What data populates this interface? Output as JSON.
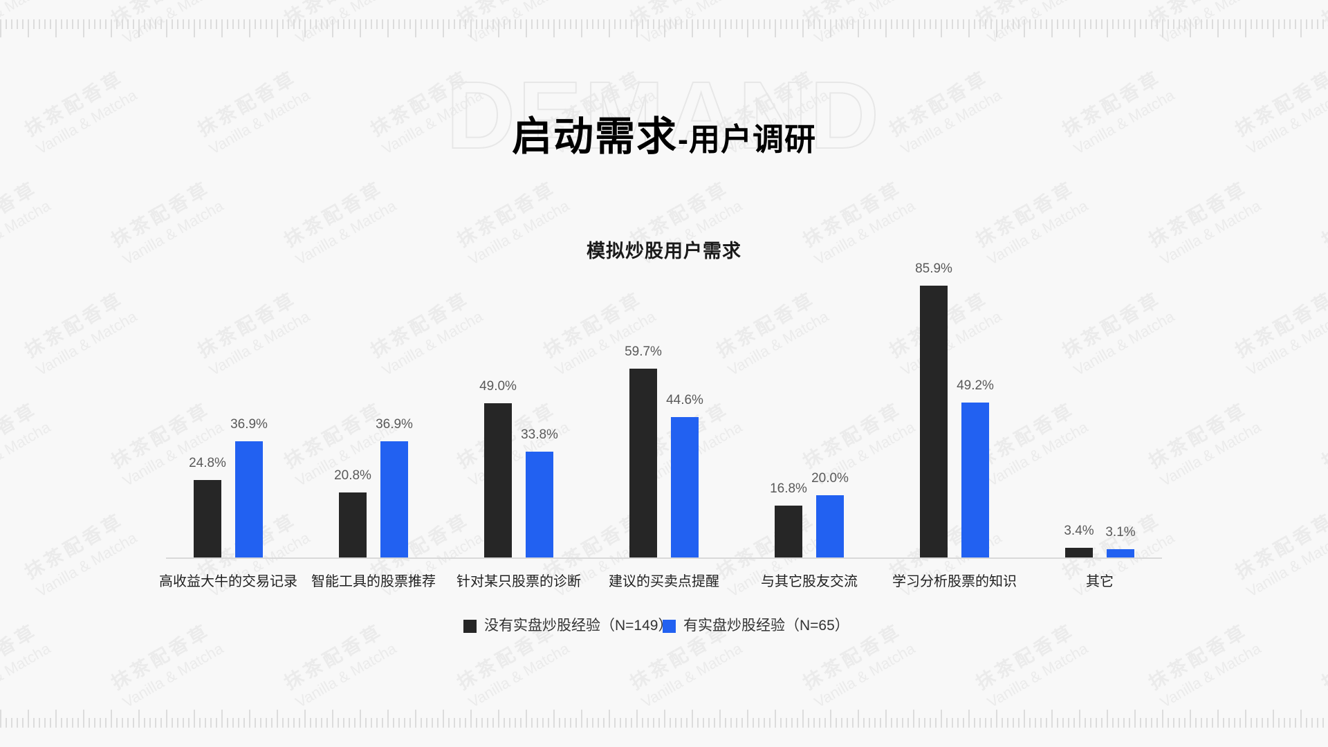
{
  "slide": {
    "background_word": "DEMAND",
    "title_main": "启动需求",
    "title_sub": "-用户调研",
    "background_color": "#f8f8f8"
  },
  "watermark": {
    "line_cn": "抹茶配香草",
    "line_en": "Vanilla & Matcha"
  },
  "chart_data": {
    "type": "bar",
    "title": "模拟炒股用户需求",
    "categories": [
      "高收益大牛的交易记录",
      "智能工具的股票推荐",
      "针对某只股票的诊断",
      "建议的买卖点提醒",
      "与其它股友交流",
      "学习分析股票的知识",
      "其它"
    ],
    "series": [
      {
        "name": "没有实盘炒股经验（N=149）",
        "color": "#262626",
        "values": [
          24.8,
          20.8,
          49.0,
          59.7,
          16.8,
          85.9,
          3.4
        ],
        "labels": [
          "24.8%",
          "20.8%",
          "49.0%",
          "59.7%",
          "16.8%",
          "85.9%",
          "3.4%"
        ]
      },
      {
        "name": "有实盘炒股经验（N=65）",
        "color": "#2261F1",
        "values": [
          36.9,
          36.9,
          33.8,
          44.6,
          20.0,
          49.2,
          3.1
        ],
        "labels": [
          "36.9%",
          "36.9%",
          "33.8%",
          "44.6%",
          "20.0%",
          "49.2%",
          "3.1%"
        ]
      }
    ],
    "xlabel": "",
    "ylabel": "",
    "ylim": [
      0,
      100
    ],
    "grid": false,
    "legend_position": "bottom",
    "value_label_color": "#595959",
    "axis_line_color": "#d9d9d9"
  }
}
